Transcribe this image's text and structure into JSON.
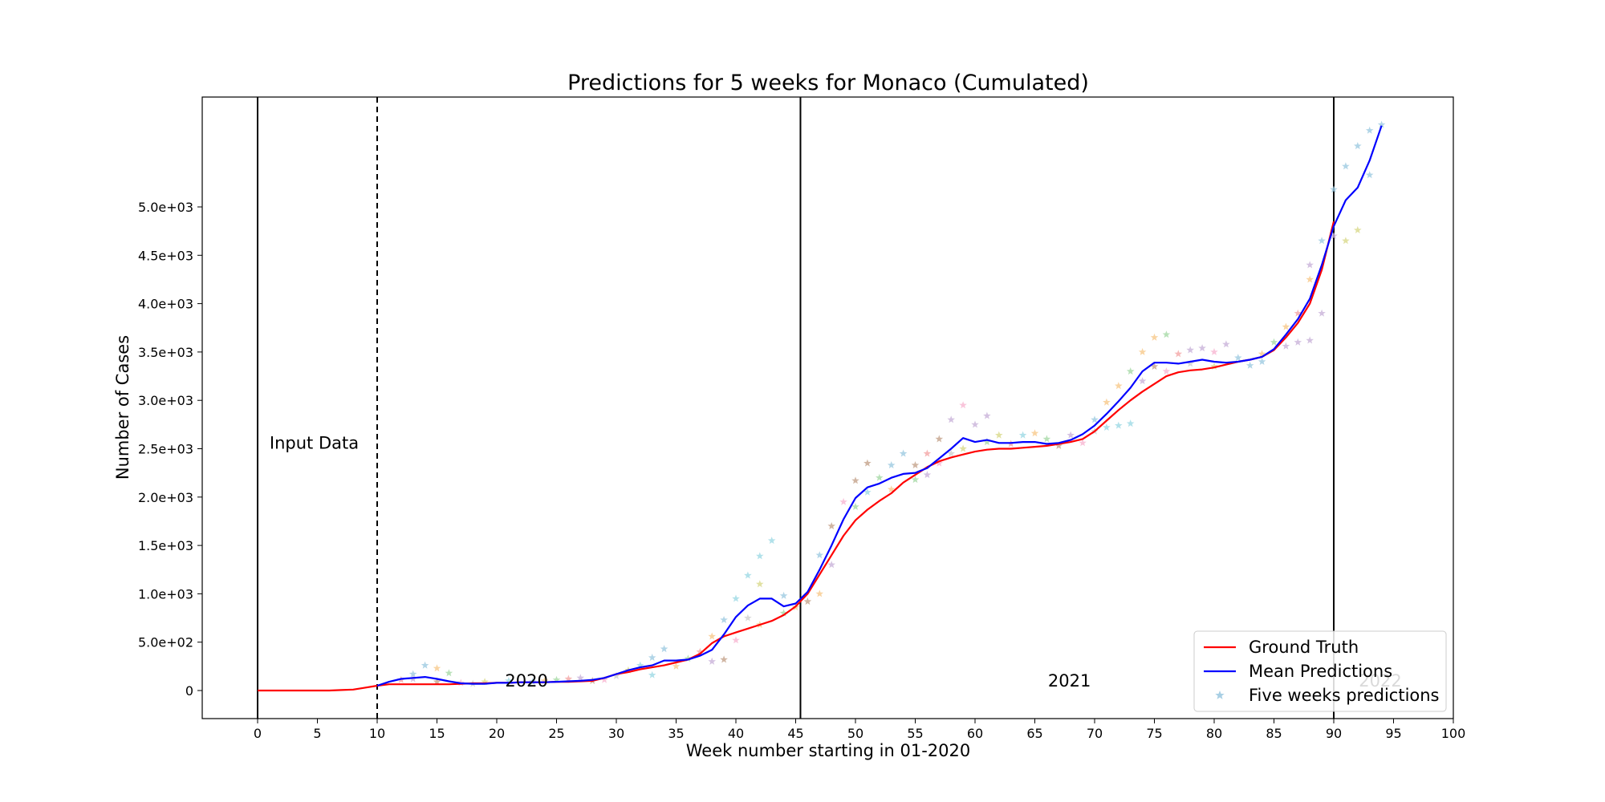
{
  "chart_data": {
    "type": "line",
    "title": "Predictions for 5 weeks for Monaco (Cumulated)",
    "xlabel": "Week number starting in 01-2020",
    "ylabel": "Number of Cases",
    "xlim": [
      -4.6,
      100
    ],
    "ylim": [
      -290,
      6150
    ],
    "x_ticks": [
      0,
      5,
      10,
      15,
      20,
      25,
      30,
      35,
      40,
      45,
      50,
      55,
      60,
      65,
      70,
      75,
      80,
      85,
      90,
      95,
      100
    ],
    "x_tick_labels": [
      "0",
      "5",
      "10",
      "15",
      "20",
      "25",
      "30",
      "35",
      "40",
      "45",
      "50",
      "55",
      "60",
      "65",
      "70",
      "75",
      "80",
      "85",
      "90",
      "95",
      "100"
    ],
    "y_ticks": [
      0,
      500,
      1000,
      1500,
      2000,
      2500,
      3000,
      3500,
      4000,
      4500,
      5000
    ],
    "y_tick_labels": [
      "0",
      "5.0e+02",
      "1.0e+03",
      "1.5e+03",
      "2.0e+03",
      "2.5e+03",
      "3.0e+03",
      "3.5e+03",
      "4.0e+03",
      "4.5e+03",
      "5.0e+03"
    ],
    "grid": false,
    "legend_position": "bottom-right",
    "vertical_lines": [
      {
        "x": 0,
        "style": "solid"
      },
      {
        "x": 10,
        "style": "dashed"
      },
      {
        "x": 45.4,
        "style": "solid"
      },
      {
        "x": 90,
        "style": "solid"
      }
    ],
    "annotations": [
      {
        "text": "Input Data",
        "x": 1,
        "y": 2500,
        "color": "#000000"
      },
      {
        "text": "2020",
        "x": 20.7,
        "y": 40,
        "color": "#000000"
      },
      {
        "text": "2021",
        "x": 66.1,
        "y": 40,
        "color": "#000000"
      },
      {
        "text": "2022",
        "x": 92.1,
        "y": 40,
        "color": "#bbbbbb"
      }
    ],
    "series": [
      {
        "name": "Ground Truth",
        "color": "#ff0000",
        "style": "line",
        "x": [
          0,
          1,
          2,
          3,
          4,
          5,
          6,
          7,
          8,
          9,
          10,
          11,
          12,
          13,
          14,
          15,
          16,
          17,
          18,
          19,
          20,
          21,
          22,
          23,
          24,
          25,
          26,
          27,
          28,
          29,
          30,
          31,
          32,
          33,
          34,
          35,
          36,
          37,
          38,
          39,
          40,
          41,
          42,
          43,
          44,
          45,
          46,
          47,
          48,
          49,
          50,
          51,
          52,
          53,
          54,
          55,
          56,
          57,
          58,
          59,
          60,
          61,
          62,
          63,
          64,
          65,
          66,
          67,
          68,
          69,
          70,
          71,
          72,
          73,
          74,
          75,
          76,
          77,
          78,
          79,
          80,
          81,
          82,
          83,
          84,
          85,
          86,
          87,
          88,
          89,
          90
        ],
        "y": [
          0,
          0,
          0,
          0,
          0,
          0,
          0,
          5,
          10,
          30,
          50,
          65,
          65,
          65,
          65,
          65,
          65,
          70,
          75,
          75,
          80,
          80,
          85,
          85,
          85,
          90,
          90,
          95,
          100,
          130,
          170,
          190,
          220,
          240,
          260,
          290,
          320,
          380,
          490,
          560,
          600,
          640,
          680,
          720,
          780,
          870,
          1000,
          1200,
          1400,
          1600,
          1760,
          1870,
          1960,
          2040,
          2150,
          2230,
          2310,
          2370,
          2410,
          2440,
          2470,
          2490,
          2500,
          2500,
          2510,
          2520,
          2530,
          2550,
          2570,
          2600,
          2680,
          2790,
          2900,
          3000,
          3090,
          3170,
          3250,
          3290,
          3310,
          3320,
          3340,
          3370,
          3400,
          3420,
          3450,
          3520,
          3650,
          3800,
          4000,
          4350,
          4850
        ]
      },
      {
        "name": "Mean Predictions",
        "color": "#0000ff",
        "style": "line",
        "x": [
          10,
          11,
          12,
          13,
          14,
          15,
          16,
          17,
          18,
          19,
          20,
          21,
          22,
          23,
          24,
          25,
          26,
          27,
          28,
          29,
          30,
          31,
          32,
          33,
          34,
          35,
          36,
          37,
          38,
          39,
          40,
          41,
          42,
          43,
          44,
          45,
          46,
          47,
          48,
          49,
          50,
          51,
          52,
          53,
          54,
          55,
          56,
          57,
          58,
          59,
          60,
          61,
          62,
          63,
          64,
          65,
          66,
          67,
          68,
          69,
          70,
          71,
          72,
          73,
          74,
          75,
          76,
          77,
          78,
          79,
          80,
          81,
          82,
          83,
          84,
          85,
          86,
          87,
          88,
          89,
          90,
          91,
          92,
          93,
          94
        ],
        "y": [
          50,
          90,
          120,
          130,
          140,
          120,
          95,
          75,
          70,
          70,
          80,
          80,
          85,
          85,
          85,
          90,
          95,
          100,
          110,
          130,
          170,
          210,
          240,
          260,
          310,
          310,
          320,
          360,
          420,
          580,
          760,
          880,
          950,
          950,
          870,
          900,
          1020,
          1250,
          1500,
          1770,
          1990,
          2100,
          2140,
          2200,
          2240,
          2250,
          2300,
          2400,
          2500,
          2610,
          2570,
          2590,
          2560,
          2560,
          2570,
          2570,
          2550,
          2560,
          2590,
          2650,
          2740,
          2860,
          2990,
          3130,
          3300,
          3390,
          3390,
          3380,
          3400,
          3420,
          3400,
          3390,
          3400,
          3420,
          3450,
          3530,
          3680,
          3840,
          4050,
          4400,
          4800,
          5070,
          5200,
          5480,
          5840
        ]
      },
      {
        "name": "Five weeks predictions",
        "color": "#9ecae1",
        "style": "scatter",
        "marker": "star",
        "points": [
          [
            12,
            110,
            "#f4a6a6"
          ],
          [
            13,
            170,
            "#9ecae1"
          ],
          [
            14,
            260,
            "#9ecae1"
          ],
          [
            15,
            230,
            "#f7c98b"
          ],
          [
            16,
            180,
            "#a6d9a6"
          ],
          [
            13,
            120,
            "#c9b3d9"
          ],
          [
            15,
            90,
            "#c4a38b"
          ],
          [
            17,
            80,
            "#f7b6d2"
          ],
          [
            18,
            70,
            "#cfcfcf"
          ],
          [
            19,
            90,
            "#d9d98b"
          ],
          [
            21,
            100,
            "#9edae5"
          ],
          [
            23,
            90,
            "#9ecae1"
          ],
          [
            24,
            100,
            "#f7c98b"
          ],
          [
            25,
            110,
            "#a6d9a6"
          ],
          [
            26,
            120,
            "#f4a6a6"
          ],
          [
            27,
            130,
            "#c9b3d9"
          ],
          [
            28,
            100,
            "#c4a38b"
          ],
          [
            29,
            110,
            "#f7b6d2"
          ],
          [
            30,
            150,
            "#cfcfcf"
          ],
          [
            31,
            210,
            "#d9d98b"
          ],
          [
            32,
            260,
            "#9edae5"
          ],
          [
            33,
            340,
            "#9ecae1"
          ],
          [
            34,
            430,
            "#9ecae1"
          ],
          [
            33,
            160,
            "#9edae5"
          ],
          [
            35,
            250,
            "#f7c98b"
          ],
          [
            36,
            330,
            "#a6d9a6"
          ],
          [
            37,
            400,
            "#f4a6a6"
          ],
          [
            38,
            560,
            "#f7c98b"
          ],
          [
            38,
            300,
            "#c9b3d9"
          ],
          [
            39,
            730,
            "#9ecae1"
          ],
          [
            39,
            320,
            "#c4a38b"
          ],
          [
            40,
            950,
            "#9edae5"
          ],
          [
            40,
            520,
            "#f7b6d2"
          ],
          [
            41,
            1190,
            "#9edae5"
          ],
          [
            41,
            750,
            "#cfcfcf"
          ],
          [
            42,
            1390,
            "#9edae5"
          ],
          [
            42,
            1100,
            "#d9d98b"
          ],
          [
            43,
            1550,
            "#9edae5"
          ],
          [
            42,
            680,
            "#f7c98b"
          ],
          [
            44,
            980,
            "#9ecae1"
          ],
          [
            44,
            800,
            "#a6d9a6"
          ],
          [
            45,
            860,
            "#f7c98b"
          ],
          [
            46,
            920,
            "#c4a38b"
          ],
          [
            47,
            1000,
            "#f7c98b"
          ],
          [
            47,
            1400,
            "#9ecae1"
          ],
          [
            48,
            1300,
            "#c9b3d9"
          ],
          [
            48,
            1700,
            "#c4a38b"
          ],
          [
            49,
            1950,
            "#f7b6d2"
          ],
          [
            50,
            2170,
            "#c4a38b"
          ],
          [
            50,
            1900,
            "#a6d9a6"
          ],
          [
            51,
            2350,
            "#c4a38b"
          ],
          [
            51,
            2050,
            "#9edae5"
          ],
          [
            52,
            2200,
            "#a6d9a6"
          ],
          [
            53,
            2330,
            "#9ecae1"
          ],
          [
            53,
            2080,
            "#f7c98b"
          ],
          [
            54,
            2450,
            "#9ecae1"
          ],
          [
            55,
            2330,
            "#c4a38b"
          ],
          [
            55,
            2180,
            "#a6d9a6"
          ],
          [
            56,
            2450,
            "#f4a6a6"
          ],
          [
            56,
            2230,
            "#c9b3d9"
          ],
          [
            57,
            2600,
            "#c4a38b"
          ],
          [
            57,
            2350,
            "#f7b6d2"
          ],
          [
            58,
            2800,
            "#c9b3d9"
          ],
          [
            58,
            2450,
            "#cfcfcf"
          ],
          [
            59,
            2950,
            "#f7b6d2"
          ],
          [
            59,
            2500,
            "#d9d98b"
          ],
          [
            60,
            2750,
            "#c9b3d9"
          ],
          [
            61,
            2840,
            "#c9b3d9"
          ],
          [
            61,
            2570,
            "#a6d9a6"
          ],
          [
            62,
            2640,
            "#d9d98b"
          ],
          [
            63,
            2550,
            "#f4a6a6"
          ],
          [
            64,
            2640,
            "#9edae5"
          ],
          [
            65,
            2660,
            "#f7c98b"
          ],
          [
            66,
            2600,
            "#a6d9a6"
          ],
          [
            67,
            2530,
            "#c4a38b"
          ],
          [
            68,
            2640,
            "#c9b3d9"
          ],
          [
            69,
            2560,
            "#f7b6d2"
          ],
          [
            70,
            2800,
            "#9ecae1"
          ],
          [
            70,
            2680,
            "#cfcfcf"
          ],
          [
            71,
            2980,
            "#f7c98b"
          ],
          [
            71,
            2720,
            "#9edae5"
          ],
          [
            72,
            3150,
            "#f7c98b"
          ],
          [
            72,
            2740,
            "#9edae5"
          ],
          [
            73,
            3300,
            "#a6d9a6"
          ],
          [
            73,
            2760,
            "#9edae5"
          ],
          [
            74,
            3500,
            "#f7c98b"
          ],
          [
            74,
            3200,
            "#c9b3d9"
          ],
          [
            75,
            3650,
            "#f7c98b"
          ],
          [
            75,
            3350,
            "#c4a38b"
          ],
          [
            76,
            3680,
            "#a6d9a6"
          ],
          [
            76,
            3300,
            "#f7b6d2"
          ],
          [
            77,
            3480,
            "#f4a6a6"
          ],
          [
            78,
            3520,
            "#c9b3d9"
          ],
          [
            78,
            3380,
            "#cfcfcf"
          ],
          [
            79,
            3540,
            "#c9b3d9"
          ],
          [
            80,
            3500,
            "#f7b6d2"
          ],
          [
            80,
            3350,
            "#d9d98b"
          ],
          [
            81,
            3580,
            "#c9b3d9"
          ],
          [
            82,
            3440,
            "#9ecae1"
          ],
          [
            83,
            3360,
            "#9ecae1"
          ],
          [
            84,
            3400,
            "#9ecae1"
          ],
          [
            84,
            3480,
            "#f7c98b"
          ],
          [
            85,
            3600,
            "#a6d9a6"
          ],
          [
            86,
            3560,
            "#c9b3d9"
          ],
          [
            86,
            3760,
            "#f7c98b"
          ],
          [
            87,
            3900,
            "#f4a6a6"
          ],
          [
            87,
            3600,
            "#c9b3d9"
          ],
          [
            88,
            4250,
            "#f7c98b"
          ],
          [
            88,
            3620,
            "#c9b3d9"
          ],
          [
            88,
            4400,
            "#c9b3d9"
          ],
          [
            89,
            4650,
            "#9ecae1"
          ],
          [
            89,
            3900,
            "#c9b3d9"
          ],
          [
            90,
            5180,
            "#9ecae1"
          ],
          [
            90,
            4700,
            "#c9b3d9"
          ],
          [
            91,
            5420,
            "#9ecae1"
          ],
          [
            91,
            4650,
            "#d9d98b"
          ],
          [
            92,
            5630,
            "#9ecae1"
          ],
          [
            92,
            4760,
            "#d9d98b"
          ],
          [
            93,
            5790,
            "#9ecae1"
          ],
          [
            93,
            5330,
            "#9ecae1"
          ],
          [
            94,
            5850,
            "#9ecae1"
          ]
        ]
      }
    ]
  }
}
